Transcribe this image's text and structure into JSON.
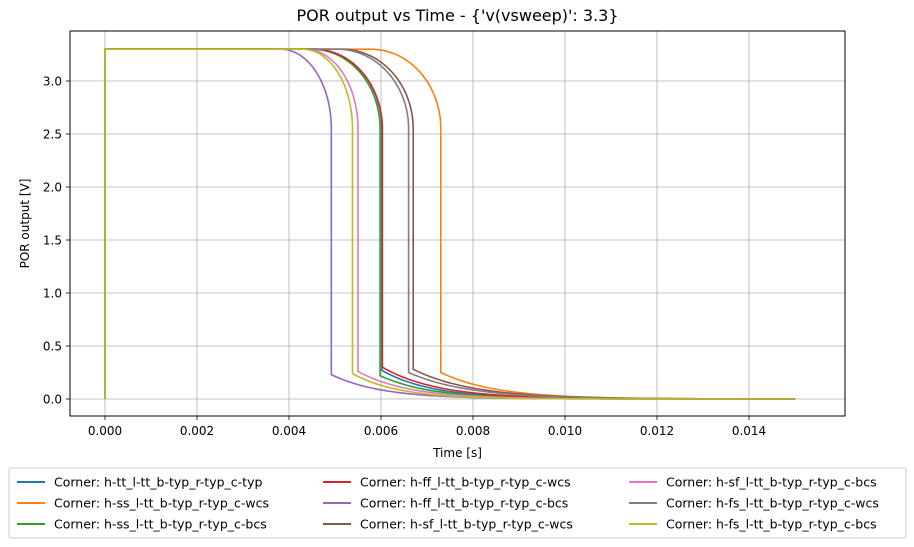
{
  "chart_data": {
    "type": "line",
    "title": "POR output vs Time - {'v(vsweep)': 3.3}",
    "xlabel": "Time [s]",
    "ylabel": "POR output [V]",
    "xlim": [
      -0.0008,
      0.0161
    ],
    "ylim": [
      -0.155,
      3.455
    ],
    "x_ticks": [
      "0.000",
      "0.002",
      "0.004",
      "0.006",
      "0.008",
      "0.010",
      "0.012",
      "0.014"
    ],
    "x_tick_values": [
      0.0,
      0.002,
      0.004,
      0.006,
      0.008,
      0.01,
      0.012,
      0.014
    ],
    "y_ticks": [
      "0.0",
      "0.5",
      "1.0",
      "1.5",
      "2.0",
      "2.5",
      "3.0"
    ],
    "y_tick_values": [
      0.0,
      0.5,
      1.0,
      1.5,
      2.0,
      2.5,
      3.0
    ],
    "grid": true,
    "legend_position": "below-center, 3 columns",
    "x_end": 0.015,
    "v_high": 3.3,
    "series": [
      {
        "name": "Corner: h-tt_l-tt_b-typ_r-typ_c-typ",
        "color": "#1f77b4",
        "rise_t": 0.0,
        "knee_start": 0.00455,
        "drop_t": 0.00602,
        "drop_to": 0.27,
        "tail_k": 0.0011
      },
      {
        "name": "Corner: h-ss_l-tt_b-typ_r-typ_c-wcs",
        "color": "#ff7f0e",
        "rise_t": 0.0,
        "knee_start": 0.00578,
        "drop_t": 0.0073,
        "drop_to": 0.25,
        "tail_k": 0.0012
      },
      {
        "name": "Corner: h-ss_l-tt_b-typ_r-typ_c-bcs",
        "color": "#2ca02c",
        "rise_t": 0.0,
        "knee_start": 0.0045,
        "drop_t": 0.00598,
        "drop_to": 0.22,
        "tail_k": 0.0011
      },
      {
        "name": "Corner: h-ff_l-tt_b-typ_r-typ_c-wcs",
        "color": "#d62728",
        "rise_t": 0.0,
        "knee_start": 0.00455,
        "drop_t": 0.00603,
        "drop_to": 0.3,
        "tail_k": 0.0012
      },
      {
        "name": "Corner: h-ff_l-tt_b-typ_r-typ_c-bcs",
        "color": "#9467bd",
        "rise_t": 0.0,
        "knee_start": 0.00382,
        "drop_t": 0.00492,
        "drop_to": 0.23,
        "tail_k": 0.0011
      },
      {
        "name": "Corner: h-sf_l-tt_b-typ_r-typ_c-wcs",
        "color": "#8c564b",
        "rise_t": 0.0,
        "knee_start": 0.00515,
        "drop_t": 0.0067,
        "drop_to": 0.28,
        "tail_k": 0.0013
      },
      {
        "name": "Corner: h-sf_l-tt_b-typ_r-typ_c-bcs",
        "color": "#e377c2",
        "rise_t": 0.0,
        "knee_start": 0.00435,
        "drop_t": 0.0055,
        "drop_to": 0.26,
        "tail_k": 0.0011
      },
      {
        "name": "Corner: h-fs_l-tt_b-typ_r-typ_c-wcs",
        "color": "#7f7f7f",
        "rise_t": 0.0,
        "knee_start": 0.00505,
        "drop_t": 0.0066,
        "drop_to": 0.25,
        "tail_k": 0.0013
      },
      {
        "name": "Corner: h-fs_l-tt_b-typ_r-typ_c-bcs",
        "color": "#bcbd22",
        "rise_t": 0.0,
        "knee_start": 0.0043,
        "drop_t": 0.00538,
        "drop_to": 0.24,
        "tail_k": 0.001
      }
    ]
  }
}
